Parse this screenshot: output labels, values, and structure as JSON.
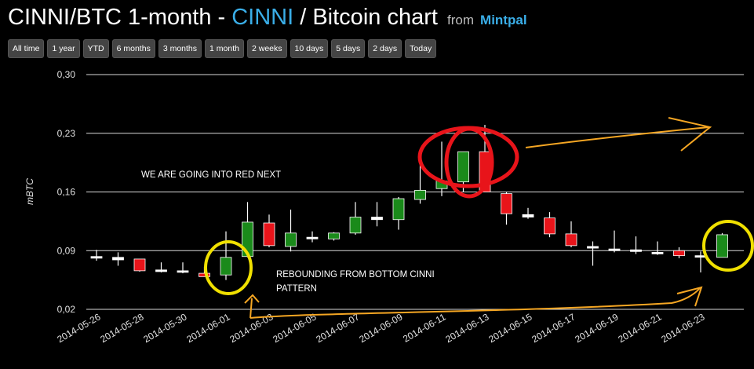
{
  "header": {
    "title_prefix": "CINNI/BTC 1-month - ",
    "title_coin": "CINNI",
    "title_suffix": " / Bitcoin chart",
    "from_label": "from",
    "source": "Mintpal"
  },
  "range_buttons": [
    "All time",
    "1 year",
    "YTD",
    "6 months",
    "3 months",
    "1 month",
    "2 weeks",
    "10 days",
    "5 days",
    "2 days",
    "Today"
  ],
  "colors": {
    "up": "#1a8a1a",
    "down": "#e8141a",
    "flat": "#ffffff",
    "grid": "#ffffff",
    "accent": "#3aaee8",
    "annotation_circle_red": "#e8141a",
    "annotation_circle_yellow": "#f0e000",
    "annotation_arrow": "#f5a623"
  },
  "chart_data": {
    "type": "candlestick",
    "ylabel": "mBTC",
    "ylim": [
      0.02,
      0.3
    ],
    "yticks": [
      "0,02",
      "0,09",
      "0,16",
      "0,23",
      "0,30"
    ],
    "ytick_values": [
      0.02,
      0.09,
      0.16,
      0.23,
      0.3
    ],
    "xtick_labels": [
      "2014-05-26",
      "2014-05-28",
      "2014-05-30",
      "2014-06-01",
      "2014-06-03",
      "2014-06-05",
      "2014-06-07",
      "2014-06-09",
      "2014-06-11",
      "2014-06-13",
      "2014-06-15",
      "2014-06-17",
      "2014-06-19",
      "2014-06-21",
      "2014-06-23"
    ],
    "candles": [
      {
        "date": "2014-05-26",
        "open": 0.083,
        "high": 0.091,
        "low": 0.078,
        "close": 0.081
      },
      {
        "date": "2014-05-27",
        "open": 0.082,
        "high": 0.088,
        "low": 0.072,
        "close": 0.079
      },
      {
        "date": "2014-05-28",
        "open": 0.08,
        "high": 0.08,
        "low": 0.065,
        "close": 0.066
      },
      {
        "date": "2014-05-29",
        "open": 0.067,
        "high": 0.076,
        "low": 0.064,
        "close": 0.065
      },
      {
        "date": "2014-05-30",
        "open": 0.066,
        "high": 0.076,
        "low": 0.063,
        "close": 0.065
      },
      {
        "date": "2014-05-31",
        "open": 0.063,
        "high": 0.071,
        "low": 0.059,
        "close": 0.059
      },
      {
        "date": "2014-06-01",
        "open": 0.061,
        "high": 0.113,
        "low": 0.055,
        "close": 0.082
      },
      {
        "date": "2014-06-02",
        "open": 0.083,
        "high": 0.148,
        "low": 0.082,
        "close": 0.124
      },
      {
        "date": "2014-06-03",
        "open": 0.123,
        "high": 0.133,
        "low": 0.094,
        "close": 0.096
      },
      {
        "date": "2014-06-04",
        "open": 0.095,
        "high": 0.139,
        "low": 0.089,
        "close": 0.111
      },
      {
        "date": "2014-06-05",
        "open": 0.104,
        "high": 0.113,
        "low": 0.1,
        "close": 0.106
      },
      {
        "date": "2014-06-06",
        "open": 0.104,
        "high": 0.112,
        "low": 0.102,
        "close": 0.111
      },
      {
        "date": "2014-06-07",
        "open": 0.111,
        "high": 0.148,
        "low": 0.109,
        "close": 0.13
      },
      {
        "date": "2014-06-08",
        "open": 0.13,
        "high": 0.148,
        "low": 0.119,
        "close": 0.127
      },
      {
        "date": "2014-06-09",
        "open": 0.127,
        "high": 0.154,
        "low": 0.115,
        "close": 0.152
      },
      {
        "date": "2014-06-10",
        "open": 0.151,
        "high": 0.196,
        "low": 0.146,
        "close": 0.162
      },
      {
        "date": "2014-06-11",
        "open": 0.164,
        "high": 0.22,
        "low": 0.155,
        "close": 0.173
      },
      {
        "date": "2014-06-12",
        "open": 0.172,
        "high": 0.208,
        "low": 0.16,
        "close": 0.208
      },
      {
        "date": "2014-06-13",
        "open": 0.208,
        "high": 0.24,
        "low": 0.16,
        "close": 0.16
      },
      {
        "date": "2014-06-14",
        "open": 0.158,
        "high": 0.16,
        "low": 0.121,
        "close": 0.134
      },
      {
        "date": "2014-06-15",
        "open": 0.133,
        "high": 0.141,
        "low": 0.128,
        "close": 0.13
      },
      {
        "date": "2014-06-16",
        "open": 0.129,
        "high": 0.136,
        "low": 0.106,
        "close": 0.11
      },
      {
        "date": "2014-06-17",
        "open": 0.11,
        "high": 0.125,
        "low": 0.094,
        "close": 0.096
      },
      {
        "date": "2014-06-18",
        "open": 0.095,
        "high": 0.101,
        "low": 0.072,
        "close": 0.093
      },
      {
        "date": "2014-06-19",
        "open": 0.092,
        "high": 0.114,
        "low": 0.088,
        "close": 0.091
      },
      {
        "date": "2014-06-20",
        "open": 0.091,
        "high": 0.107,
        "low": 0.086,
        "close": 0.089
      },
      {
        "date": "2014-06-21",
        "open": 0.088,
        "high": 0.101,
        "low": 0.085,
        "close": 0.087
      },
      {
        "date": "2014-06-22",
        "open": 0.09,
        "high": 0.094,
        "low": 0.081,
        "close": 0.084
      },
      {
        "date": "2014-06-23",
        "open": 0.084,
        "high": 0.089,
        "low": 0.064,
        "close": 0.083
      },
      {
        "date": "2014-06-24",
        "open": 0.082,
        "high": 0.111,
        "low": 0.082,
        "close": 0.109
      }
    ],
    "annotations": [
      {
        "text": "WE ARE GOING INTO RED NEXT"
      },
      {
        "text": "REBOUNDING FROM BOTTOM CINNI"
      },
      {
        "text": "PATTERN"
      }
    ]
  }
}
